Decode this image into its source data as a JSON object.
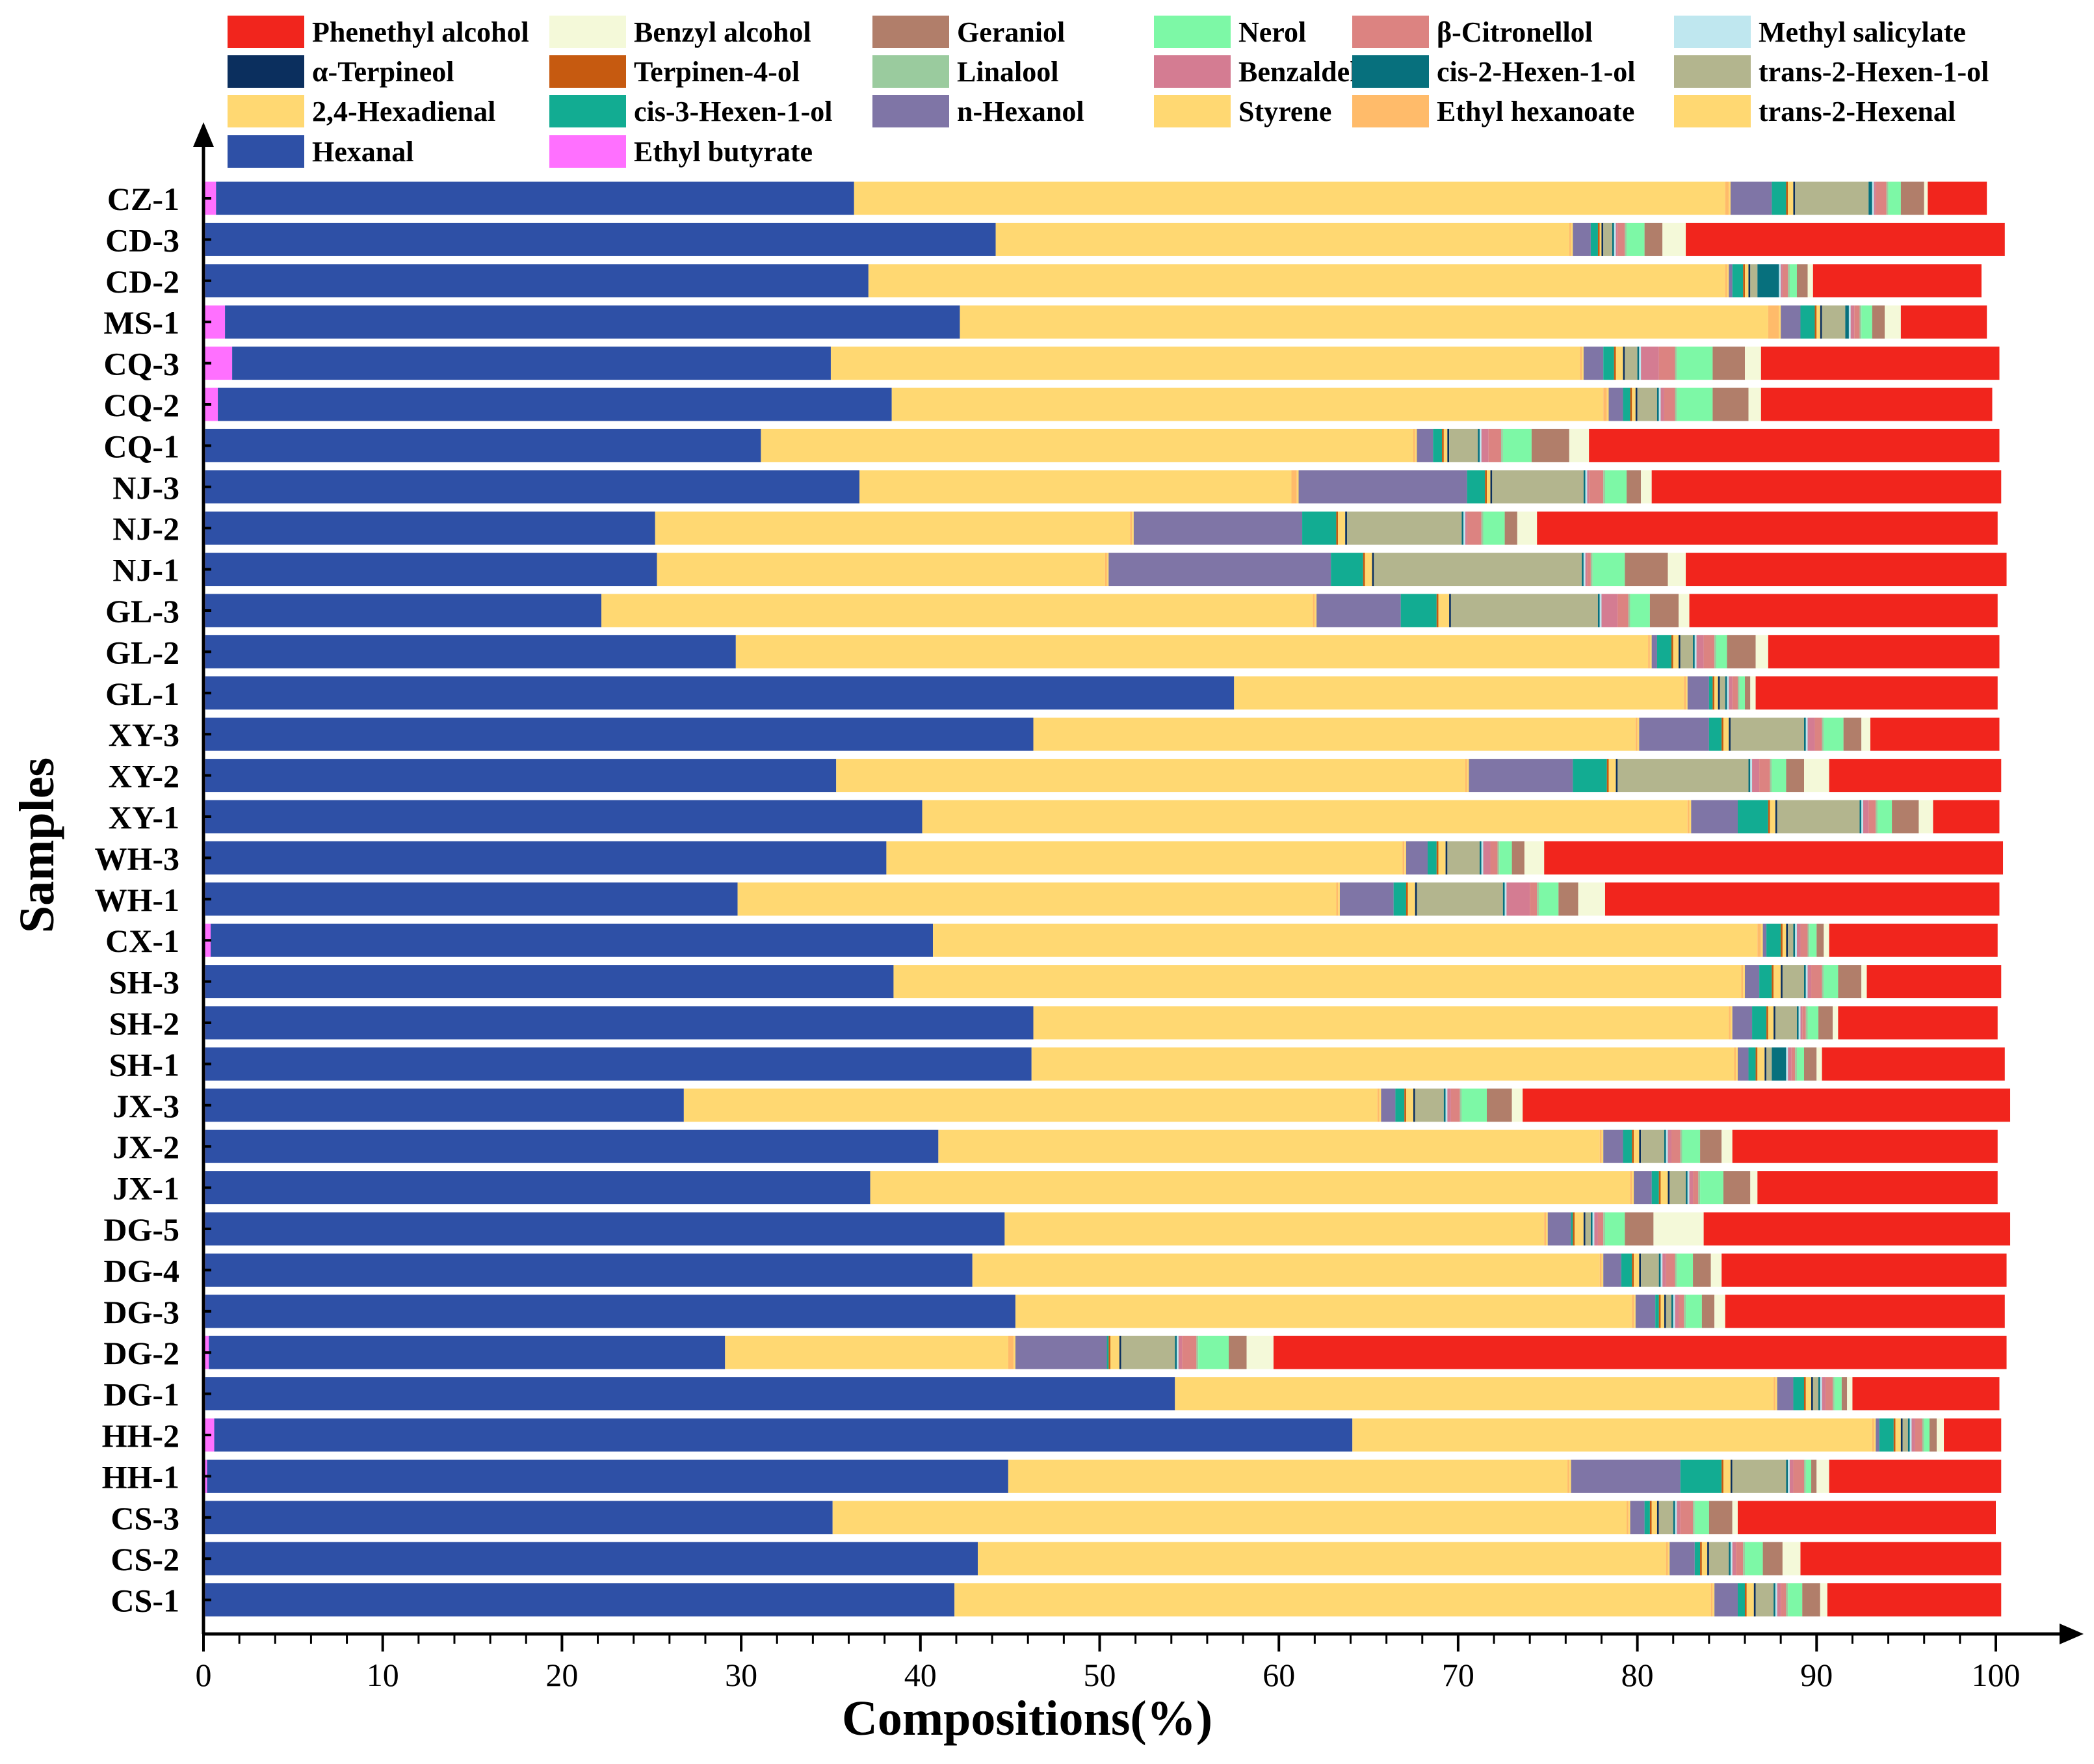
{
  "chart_data": {
    "type": "bar",
    "orientation": "horizontal",
    "stacked": true,
    "xlabel": "Compositions(%)",
    "ylabel": "Samples",
    "xlim": [
      0,
      100
    ],
    "xticks": [
      "0",
      "10",
      "20",
      "30",
      "40",
      "50",
      "60",
      "70",
      "80",
      "90",
      "100"
    ],
    "legend_position": "top",
    "categories": [
      "CZ-1",
      "CD-3",
      "CD-2",
      "MS-1",
      "CQ-3",
      "CQ-2",
      "CQ-1",
      "NJ-3",
      "NJ-2",
      "NJ-1",
      "GL-3",
      "GL-2",
      "GL-1",
      "XY-3",
      "XY-2",
      "XY-1",
      "WH-3",
      "WH-1",
      "CX-1",
      "SH-3",
      "SH-2",
      "SH-1",
      "JX-3",
      "JX-2",
      "JX-1",
      "DG-5",
      "DG-4",
      "DG-3",
      "DG-2",
      "DG-1",
      "HH-2",
      "HH-1",
      "CS-3",
      "CS-2",
      "CS-1"
    ],
    "legend_order": [
      "Phenethyl alcohol",
      "Benzyl alcohol",
      "Geraniol",
      "Nerol",
      "β-Citronellol",
      "Methyl salicylate",
      "α-Terpineol",
      "Terpinen-4-ol",
      "Linalool",
      "Benzaldehyde",
      "cis-2-Hexen-1-ol",
      "trans-2-Hexen-1-ol",
      "2,4-Hexadienal",
      "cis-3-Hexen-1-ol",
      "n-Hexanol",
      "Styrene",
      "Ethyl hexanoate",
      "trans-2-Hexenal",
      "Hexanal",
      "Ethyl butyrate"
    ],
    "series": [
      {
        "name": "Ethyl butyrate",
        "color": "#FF70FF",
        "values": [
          0.7,
          0.1,
          0.1,
          1.2,
          1.6,
          0.8,
          0.1,
          0.1,
          0.1,
          0.1,
          0.1,
          0.1,
          0.1,
          0.1,
          0.1,
          0.1,
          0.1,
          0.1,
          0.4,
          0.1,
          0.1,
          0.1,
          0.1,
          0.1,
          0.1,
          0.1,
          0.1,
          0.1,
          0.3,
          0.1,
          0.6,
          0.2,
          0.1,
          0.1,
          0.1
        ]
      },
      {
        "name": "Hexanal",
        "color": "#2E50A6",
        "values": [
          35.6,
          44.1,
          37.0,
          41.0,
          33.4,
          37.6,
          31.0,
          36.5,
          25.1,
          25.2,
          22.1,
          29.6,
          57.4,
          46.2,
          35.2,
          40.0,
          38.0,
          29.7,
          40.3,
          38.4,
          46.2,
          46.1,
          26.7,
          40.9,
          37.1,
          44.6,
          42.8,
          45.2,
          28.8,
          54.1,
          63.5,
          44.7,
          35.0,
          43.1,
          41.8
        ]
      },
      {
        "name": "trans-2-Hexenal",
        "color": "#FFD872",
        "values": [
          48.6,
          32.0,
          47.8,
          45.1,
          41.8,
          39.7,
          36.4,
          24.1,
          26.5,
          25.0,
          39.7,
          50.9,
          25.1,
          33.6,
          35.1,
          42.7,
          28.8,
          33.4,
          46.0,
          47.3,
          38.8,
          39.2,
          38.7,
          36.9,
          42.4,
          30.1,
          35.0,
          34.4,
          15.8,
          33.4,
          29.0,
          31.2,
          44.3,
          38.4,
          42.2
        ]
      },
      {
        "name": "Ethyl hexanoate",
        "color": "#FFBB6A",
        "values": [
          0.2,
          0.1,
          0.1,
          0.6,
          0.1,
          0.2,
          0.1,
          0.3,
          0.1,
          0.1,
          0.1,
          0.1,
          0.1,
          0.1,
          0.1,
          0.1,
          0.1,
          0.1,
          0.2,
          0.1,
          0.1,
          0.1,
          0.1,
          0.1,
          0.1,
          0.1,
          0.1,
          0.1,
          0.3,
          0.1,
          0.1,
          0.1,
          0.1,
          0.1,
          0.1
        ]
      },
      {
        "name": "Styrene",
        "color": "#FFD872",
        "values": [
          0.1,
          0.1,
          0.1,
          0.1,
          0.1,
          0.1,
          0.1,
          0.1,
          0.1,
          0.1,
          0.1,
          0.1,
          0.1,
          0.1,
          0.1,
          0.1,
          0.1,
          0.1,
          0.1,
          0.1,
          0.1,
          0.1,
          0.1,
          0.1,
          0.1,
          0.1,
          0.1,
          0.1,
          0.1,
          0.1,
          0.1,
          0.1,
          0.1,
          0.1,
          0.1
        ]
      },
      {
        "name": "n-Hexanol",
        "color": "#7F75A6",
        "values": [
          2.3,
          1.0,
          0.2,
          1.1,
          1.1,
          0.8,
          0.9,
          9.4,
          9.4,
          12.4,
          4.7,
          0.3,
          1.2,
          3.9,
          5.8,
          2.6,
          1.2,
          3.0,
          0.2,
          0.8,
          1.1,
          0.6,
          0.8,
          1.1,
          1.0,
          1.3,
          1.0,
          1.1,
          5.1,
          0.9,
          0.2,
          6.1,
          0.8,
          1.4,
          1.3
        ]
      },
      {
        "name": "cis-3-Hexen-1-ol",
        "color": "#12AC92",
        "values": [
          0.8,
          0.4,
          0.6,
          0.8,
          0.6,
          0.4,
          0.5,
          1.0,
          1.9,
          1.8,
          2.0,
          0.8,
          0.2,
          0.7,
          1.9,
          1.7,
          0.5,
          0.7,
          0.8,
          0.7,
          0.8,
          0.4,
          0.5,
          0.5,
          0.4,
          0.1,
          0.6,
          0.2,
          0.1,
          0.6,
          0.8,
          2.3,
          0.3,
          0.3,
          0.4
        ]
      },
      {
        "name": "Terpinen-4-ol",
        "color": "#C65A10",
        "values": [
          0.1,
          0.1,
          0.1,
          0.1,
          0.1,
          0.1,
          0.1,
          0.1,
          0.1,
          0.1,
          0.1,
          0.1,
          0.1,
          0.1,
          0.1,
          0.1,
          0.1,
          0.1,
          0.1,
          0.1,
          0.1,
          0.1,
          0.1,
          0.1,
          0.1,
          0.1,
          0.1,
          0.1,
          0.1,
          0.1,
          0.1,
          0.1,
          0.1,
          0.1,
          0.1
        ]
      },
      {
        "name": "2,4-Hexadienal",
        "color": "#FFD872",
        "values": [
          0.3,
          0.1,
          0.2,
          0.2,
          0.4,
          0.2,
          0.2,
          0.2,
          0.4,
          0.4,
          0.6,
          0.3,
          0.2,
          0.3,
          0.4,
          0.3,
          0.4,
          0.4,
          0.2,
          0.4,
          0.3,
          0.4,
          0.4,
          0.3,
          0.4,
          0.5,
          0.3,
          0.2,
          0.5,
          0.3,
          0.3,
          0.4,
          0.3,
          0.3,
          0.4
        ]
      },
      {
        "name": "α-Terpineol",
        "color": "#0B2F5E",
        "values": [
          0.1,
          0.1,
          0.1,
          0.1,
          0.1,
          0.1,
          0.1,
          0.1,
          0.1,
          0.1,
          0.1,
          0.1,
          0.1,
          0.1,
          0.1,
          0.1,
          0.1,
          0.1,
          0.1,
          0.1,
          0.1,
          0.1,
          0.1,
          0.1,
          0.1,
          0.1,
          0.1,
          0.1,
          0.1,
          0.1,
          0.1,
          0.1,
          0.1,
          0.1,
          0.1
        ]
      },
      {
        "name": "trans-2-Hexen-1-ol",
        "color": "#B3B58E",
        "values": [
          4.1,
          0.5,
          0.4,
          1.3,
          0.7,
          1.1,
          1.6,
          5.1,
          6.4,
          11.6,
          8.2,
          0.7,
          0.3,
          4.1,
          7.3,
          4.6,
          1.8,
          4.8,
          0.3,
          1.2,
          1.2,
          0.3,
          1.6,
          1.3,
          0.9,
          0.3,
          1.0,
          0.3,
          3.0,
          0.3,
          0.3,
          3.0,
          0.8,
          1.1,
          1.0
        ]
      },
      {
        "name": "cis-2-Hexen-1-ol",
        "color": "#07707D",
        "values": [
          0.2,
          0.1,
          1.2,
          0.2,
          0.1,
          0.1,
          0.1,
          0.1,
          0.1,
          0.1,
          0.1,
          0.1,
          0.1,
          0.1,
          0.1,
          0.1,
          0.1,
          0.1,
          0.1,
          0.1,
          0.1,
          0.8,
          0.1,
          0.1,
          0.1,
          0.1,
          0.1,
          0.1,
          0.1,
          0.1,
          0.1,
          0.1,
          0.1,
          0.1,
          0.1
        ]
      },
      {
        "name": "Methyl salicylate",
        "color": "#BFE7EF",
        "values": [
          0.1,
          0.1,
          0.1,
          0.1,
          0.1,
          0.1,
          0.1,
          0.1,
          0.1,
          0.1,
          0.1,
          0.1,
          0.1,
          0.1,
          0.1,
          0.1,
          0.1,
          0.1,
          0.1,
          0.1,
          0.1,
          0.1,
          0.1,
          0.1,
          0.1,
          0.1,
          0.1,
          0.1,
          0.1,
          0.1,
          0.1,
          0.1,
          0.1,
          0.1,
          0.1
        ]
      },
      {
        "name": "Benzaldehyde",
        "color": "#D47C92",
        "values": [
          0.1,
          0.1,
          0.1,
          0.2,
          1.0,
          0.2,
          0.4,
          0.1,
          0.1,
          0.1,
          0.9,
          0.4,
          0.2,
          0.4,
          0.4,
          0.3,
          0.4,
          1.3,
          0.2,
          0.2,
          0.1,
          0.2,
          0.2,
          0.2,
          0.2,
          0.2,
          0.2,
          0.2,
          0.2,
          0.2,
          0.2,
          0.2,
          0.2,
          0.2,
          0.2
        ]
      },
      {
        "name": "β-Citronellol",
        "color": "#DC8381",
        "values": [
          0.6,
          0.4,
          0.3,
          0.3,
          0.9,
          0.6,
          0.7,
          0.8,
          0.8,
          0.2,
          0.6,
          0.6,
          0.3,
          0.4,
          0.6,
          0.4,
          0.4,
          0.4,
          0.4,
          0.6,
          0.2,
          0.2,
          0.5,
          0.5,
          0.3,
          0.3,
          0.5,
          0.3,
          0.8,
          0.4,
          0.4,
          0.6,
          0.7,
          0.4,
          0.3
        ]
      },
      {
        "name": "Linalool",
        "color": "#9ACB9E",
        "values": [
          0.1,
          0.1,
          0.1,
          0.1,
          0.1,
          0.1,
          0.1,
          0.1,
          0.1,
          0.1,
          0.1,
          0.1,
          0.1,
          0.1,
          0.1,
          0.1,
          0.1,
          0.1,
          0.1,
          0.1,
          0.1,
          0.1,
          0.1,
          0.1,
          0.1,
          0.1,
          0.1,
          0.1,
          0.1,
          0.1,
          0.1,
          0.1,
          0.1,
          0.1,
          0.1
        ]
      },
      {
        "name": "Nerol",
        "color": "#7DF8A6",
        "values": [
          0.7,
          1.0,
          0.4,
          0.6,
          2.0,
          2.0,
          1.6,
          1.2,
          1.2,
          1.8,
          1.1,
          0.6,
          0.3,
          1.1,
          0.8,
          0.8,
          0.7,
          1.1,
          0.4,
          0.8,
          0.6,
          0.4,
          1.4,
          1.0,
          1.3,
          1.1,
          0.9,
          0.9,
          1.7,
          0.4,
          0.3,
          0.3,
          0.8,
          1.0,
          0.8
        ]
      },
      {
        "name": "Geraniol",
        "color": "#B17E6A",
        "values": [
          1.3,
          1.0,
          0.6,
          0.7,
          1.8,
          2.0,
          2.1,
          0.8,
          0.7,
          2.4,
          1.6,
          1.6,
          0.3,
          1.0,
          1.0,
          1.5,
          0.7,
          1.1,
          0.4,
          1.3,
          0.8,
          0.7,
          1.4,
          1.2,
          1.5,
          1.6,
          1.0,
          0.7,
          1.0,
          0.3,
          0.4,
          0.3,
          1.3,
          1.1,
          1.0
        ]
      },
      {
        "name": "Benzyl alcohol",
        "color": "#F4F9D9",
        "values": [
          0.2,
          1.3,
          0.3,
          0.9,
          0.9,
          0.7,
          1.1,
          0.6,
          1.1,
          1.0,
          0.6,
          0.7,
          0.3,
          0.5,
          1.4,
          0.8,
          1.1,
          1.5,
          0.3,
          0.3,
          0.3,
          0.3,
          0.6,
          0.6,
          0.4,
          2.8,
          0.6,
          0.6,
          1.5,
          0.3,
          0.4,
          0.7,
          0.3,
          1.0,
          0.4
        ]
      },
      {
        "name": "Phenethyl alcohol",
        "color": "#F1251D",
        "values": [
          3.3,
          17.8,
          9.4,
          4.8,
          13.3,
          12.9,
          22.9,
          19.5,
          25.7,
          17.9,
          17.2,
          12.9,
          13.5,
          7.2,
          9.6,
          3.7,
          25.6,
          22.0,
          9.4,
          7.5,
          8.9,
          10.2,
          27.2,
          14.8,
          13.4,
          17.1,
          15.9,
          15.6,
          40.9,
          8.2,
          3.2,
          9.6,
          14.4,
          11.2,
          9.7
        ]
      }
    ]
  }
}
